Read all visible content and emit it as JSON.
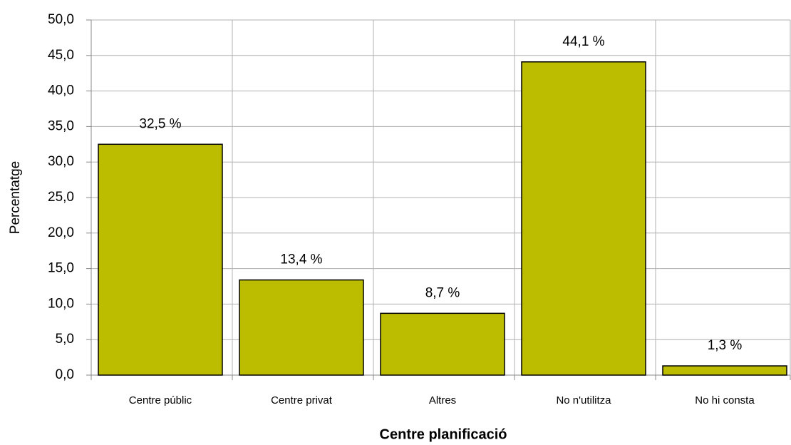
{
  "chart_data": {
    "type": "bar",
    "x_label": "Centre planificació",
    "y_label": "Percentatge",
    "categories": [
      "Centre públic",
      "Centre privat",
      "Altres",
      "No n'utilitza",
      "No hi consta"
    ],
    "values": [
      32.5,
      13.4,
      8.7,
      44.1,
      1.3
    ],
    "value_labels": [
      "32,5 %",
      "13,4 %",
      "8,7 %",
      "44,1 %",
      "1,3 %"
    ],
    "color": "#bcbd00",
    "ylim": [
      0,
      50
    ],
    "yticks": [
      {
        "value": 0,
        "label": "0,0"
      },
      {
        "value": 5,
        "label": "5,0"
      },
      {
        "value": 10,
        "label": "10,0"
      },
      {
        "value": 15,
        "label": "15,0"
      },
      {
        "value": 20,
        "label": "20,0"
      },
      {
        "value": 25,
        "label": "25,0"
      },
      {
        "value": 30,
        "label": "30,0"
      },
      {
        "value": 35,
        "label": "35,0"
      },
      {
        "value": 40,
        "label": "40,0"
      },
      {
        "value": 45,
        "label": "45,0"
      },
      {
        "value": 50,
        "label": "50,0"
      }
    ],
    "grid": true
  }
}
